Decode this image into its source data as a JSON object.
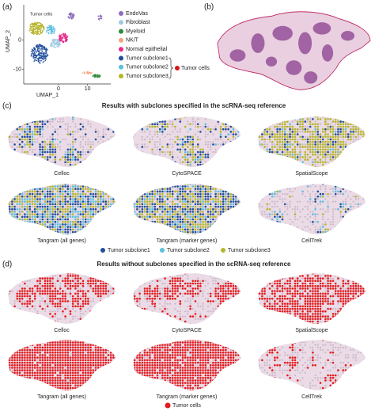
{
  "panel_a": {
    "label": "(a)",
    "cluster_label": "Tumor cells",
    "x_axis_label": "UMAP_1",
    "y_axis_label": "UMAP_2",
    "xlim": [
      -12,
      18
    ],
    "ylim": [
      -15,
      12
    ],
    "xticks": [
      0,
      10
    ],
    "yticks": [
      0,
      -10
    ],
    "legend": [
      {
        "name": "EndoVas",
        "color": "#8e6bbf"
      },
      {
        "name": "Fibroblast",
        "color": "#9ecae1"
      },
      {
        "name": "Myeloid",
        "color": "#2e8b3a"
      },
      {
        "name": "NK/T",
        "color": "#f4a582"
      },
      {
        "name": "Normal epithelial",
        "color": "#e7298a"
      },
      {
        "name": "Tumor subclone1",
        "color": "#1f4e9c"
      },
      {
        "name": "Tumor subclone2",
        "color": "#5bc0de"
      },
      {
        "name": "Tumor subclone3",
        "color": "#b5b52a"
      }
    ],
    "bracket_label": "Tumor cells",
    "bracket_color": "#d7191c"
  },
  "panel_b": {
    "label": "(b)"
  },
  "panel_c": {
    "label": "(c)",
    "title": "Results with subclones specified in the scRNA-seq reference",
    "methods": [
      "Celloc",
      "CytoSPACE",
      "SpatialScope",
      "Tangram (all genes)",
      "Tangram (marker genes)",
      "CellTrek"
    ],
    "legend": [
      {
        "name": "Tumor subclone1",
        "color": "#1f4e9c"
      },
      {
        "name": "Tumor subclone2",
        "color": "#5bc0de"
      },
      {
        "name": "Tumor subclone3",
        "color": "#b5b52a"
      }
    ]
  },
  "panel_d": {
    "label": "(d)",
    "title": "Results without subclones specified in the scRNA-seq reference",
    "methods": [
      "Celloc",
      "CytoSPACE",
      "SpatialScope",
      "Tangram (all genes)",
      "Tangram (marker genes)",
      "CellTrek"
    ],
    "legend": [
      {
        "name": "Tumor cells",
        "color": "#e41a1c"
      }
    ]
  }
}
